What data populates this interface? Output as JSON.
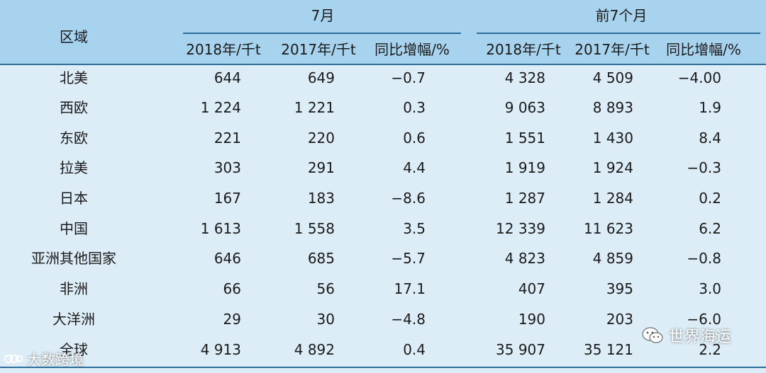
{
  "header": {
    "region": "区域",
    "group_july": "7月",
    "group_ytd": "前7个月",
    "col_2018": "2018年/千t",
    "col_2017": "2017年/千t",
    "col_yoy": "同比增幅/%"
  },
  "rows": [
    {
      "region": "北美",
      "j18": "644",
      "j17": "649",
      "jy": "−0.7",
      "y18": "4 328",
      "y17": "4 509",
      "yy": "−4.00"
    },
    {
      "region": "西欧",
      "j18": "1 224",
      "j17": "1 221",
      "jy": "0.3",
      "y18": "9 063",
      "y17": "8 893",
      "yy": "1.9"
    },
    {
      "region": "东欧",
      "j18": "221",
      "j17": "220",
      "jy": "0.6",
      "y18": "1 551",
      "y17": "1 430",
      "yy": "8.4"
    },
    {
      "region": "拉美",
      "j18": "303",
      "j17": "291",
      "jy": "4.4",
      "y18": "1 919",
      "y17": "1 924",
      "yy": "−0.3"
    },
    {
      "region": "日本",
      "j18": "167",
      "j17": "183",
      "jy": "−8.6",
      "y18": "1 287",
      "y17": "1 284",
      "yy": "0.2"
    },
    {
      "region": "中国",
      "j18": "1 613",
      "j17": "1 558",
      "jy": "3.5",
      "y18": "12 339",
      "y17": "11 623",
      "yy": "6.2"
    },
    {
      "region": "亚洲其他国家",
      "j18": "646",
      "j17": "685",
      "jy": "−5.7",
      "y18": "4 823",
      "y17": "4 859",
      "yy": "−0.8"
    },
    {
      "region": "非洲",
      "j18": "66",
      "j17": "56",
      "jy": "17.1",
      "y18": "407",
      "y17": "395",
      "yy": "3.0"
    },
    {
      "region": "大洋洲",
      "j18": "29",
      "j17": "30",
      "jy": "−4.8",
      "y18": "190",
      "y17": "203",
      "yy": "−6.0"
    },
    {
      "region": "全球",
      "j18": "4 913",
      "j17": "4 892",
      "jy": "0.4",
      "y18": "35 907",
      "y17": "35 121",
      "yy": "2.2"
    }
  ],
  "watermarks": {
    "left": "大数跨境",
    "right": "世界海运"
  },
  "colors": {
    "header_bg": "#a8d3ee",
    "body_bg": "#dcedf7",
    "rule": "#2d6f9a"
  }
}
